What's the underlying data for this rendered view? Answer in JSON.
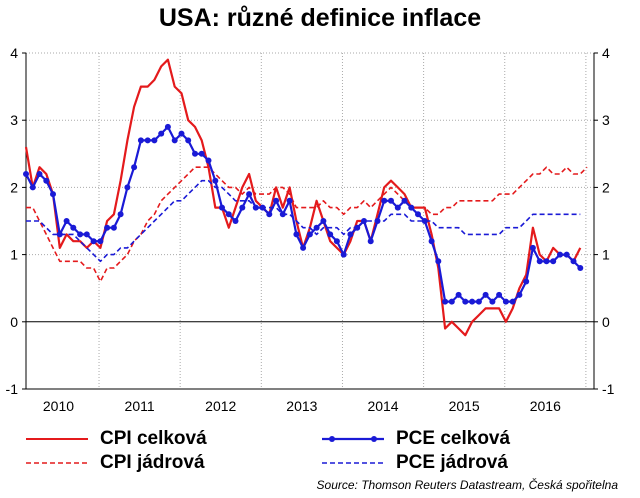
{
  "title": "USA: různé definice inflace",
  "source": "Source: Thomson Reuters Datastream, Česká spořitelna",
  "legend": {
    "cpi_total": "CPI celková",
    "cpi_core": "CPI jádrová",
    "pce_total": "PCE celková",
    "pce_core": "PCE jádrová"
  },
  "colors": {
    "red": "#e41a1c",
    "blue": "#1a1ad6"
  },
  "chart_data": {
    "type": "line",
    "title": "USA: různé definice inflace",
    "xlabel": "",
    "ylabel": "",
    "ylim": [
      -1,
      4
    ],
    "xlim": [
      2009.6,
      2016.6
    ],
    "yticks": [
      -1,
      0,
      1,
      2,
      3,
      4
    ],
    "ytick_labels": [
      "-1",
      "0",
      "1",
      "2",
      "3",
      "4"
    ],
    "xtick_labels": [
      "2010",
      "2011",
      "2012",
      "2013",
      "2014",
      "2015",
      "2016"
    ],
    "xtick_positions": [
      2010.0,
      2011.0,
      2012.0,
      2013.0,
      2014.0,
      2015.0,
      2016.0
    ],
    "grid": true,
    "legend_position": "bottom",
    "series": [
      {
        "name": "CPI celková",
        "color": "#e41a1c",
        "style": "solid",
        "start": 2009.6,
        "step": 0.0833,
        "values": [
          2.6,
          2.0,
          2.3,
          2.2,
          1.9,
          1.1,
          1.3,
          1.2,
          1.2,
          1.1,
          1.2,
          1.1,
          1.5,
          1.6,
          2.1,
          2.7,
          3.2,
          3.5,
          3.5,
          3.6,
          3.8,
          3.9,
          3.5,
          3.4,
          3.0,
          2.9,
          2.7,
          2.3,
          1.7,
          1.7,
          1.4,
          1.7,
          2.0,
          2.2,
          1.8,
          1.7,
          1.6,
          2.0,
          1.7,
          2.0,
          1.5,
          1.1,
          1.4,
          1.8,
          1.5,
          1.2,
          1.1,
          1.0,
          1.2,
          1.5,
          1.5,
          1.2,
          1.6,
          2.0,
          2.1,
          2.0,
          1.9,
          1.7,
          1.7,
          1.7,
          1.3,
          0.8,
          -0.1,
          0.0,
          -0.1,
          -0.2,
          0.0,
          0.1,
          0.2,
          0.2,
          0.2,
          0.0,
          0.2,
          0.5,
          0.7,
          1.4,
          1.0,
          0.9,
          1.1,
          1.0,
          1.0,
          0.9,
          1.1
        ]
      },
      {
        "name": "CPI jádrová",
        "color": "#e41a1c",
        "style": "dashed",
        "start": 2009.6,
        "step": 0.0833,
        "values": [
          1.7,
          1.7,
          1.5,
          1.3,
          1.1,
          0.9,
          0.9,
          0.9,
          0.9,
          0.8,
          0.8,
          0.6,
          0.8,
          0.8,
          0.9,
          1.0,
          1.2,
          1.3,
          1.5,
          1.6,
          1.8,
          1.9,
          2.0,
          2.1,
          2.2,
          2.3,
          2.3,
          2.3,
          2.2,
          2.1,
          2.0,
          2.0,
          1.9,
          2.0,
          1.9,
          1.9,
          1.9,
          2.0,
          2.0,
          1.9,
          1.7,
          1.7,
          1.7,
          1.7,
          1.8,
          1.7,
          1.7,
          1.6,
          1.7,
          1.7,
          1.8,
          1.7,
          1.8,
          1.9,
          2.0,
          1.9,
          1.8,
          1.7,
          1.7,
          1.7,
          1.6,
          1.6,
          1.7,
          1.7,
          1.8,
          1.8,
          1.8,
          1.8,
          1.8,
          1.8,
          1.9,
          1.9,
          1.9,
          2.0,
          2.1,
          2.2,
          2.2,
          2.3,
          2.2,
          2.2,
          2.3,
          2.2,
          2.2,
          2.3
        ]
      },
      {
        "name": "PCE celková",
        "color": "#1a1ad6",
        "style": "solid-markers",
        "start": 2009.6,
        "step": 0.0833,
        "values": [
          2.2,
          2.0,
          2.2,
          2.1,
          1.9,
          1.3,
          1.5,
          1.4,
          1.3,
          1.3,
          1.2,
          1.2,
          1.4,
          1.4,
          1.6,
          2.0,
          2.3,
          2.7,
          2.7,
          2.7,
          2.8,
          2.9,
          2.7,
          2.8,
          2.7,
          2.5,
          2.5,
          2.4,
          2.1,
          1.7,
          1.6,
          1.5,
          1.7,
          1.9,
          1.7,
          1.7,
          1.6,
          1.8,
          1.6,
          1.8,
          1.3,
          1.1,
          1.3,
          1.4,
          1.5,
          1.3,
          1.2,
          1.0,
          1.3,
          1.4,
          1.5,
          1.2,
          1.5,
          1.8,
          1.8,
          1.7,
          1.8,
          1.7,
          1.6,
          1.5,
          1.2,
          0.9,
          0.3,
          0.3,
          0.4,
          0.3,
          0.3,
          0.3,
          0.4,
          0.3,
          0.4,
          0.3,
          0.3,
          0.4,
          0.6,
          1.1,
          0.9,
          0.9,
          0.9,
          1.0,
          1.0,
          0.9,
          0.8
        ]
      },
      {
        "name": "PCE jádrová",
        "color": "#1a1ad6",
        "style": "dashed",
        "start": 2009.6,
        "step": 0.0833,
        "values": [
          1.5,
          1.5,
          1.5,
          1.4,
          1.3,
          1.3,
          1.3,
          1.3,
          1.2,
          1.1,
          1.0,
          0.9,
          1.0,
          1.0,
          1.1,
          1.1,
          1.2,
          1.3,
          1.4,
          1.5,
          1.6,
          1.7,
          1.8,
          1.8,
          1.9,
          2.0,
          2.1,
          2.1,
          2.0,
          2.0,
          1.9,
          1.8,
          1.8,
          1.8,
          1.7,
          1.7,
          1.7,
          1.7,
          1.6,
          1.6,
          1.5,
          1.4,
          1.4,
          1.3,
          1.4,
          1.4,
          1.4,
          1.3,
          1.4,
          1.4,
          1.5,
          1.5,
          1.5,
          1.5,
          1.6,
          1.6,
          1.6,
          1.5,
          1.5,
          1.5,
          1.5,
          1.4,
          1.4,
          1.4,
          1.4,
          1.3,
          1.3,
          1.3,
          1.3,
          1.3,
          1.3,
          1.4,
          1.4,
          1.4,
          1.5,
          1.6,
          1.6,
          1.6,
          1.6,
          1.6,
          1.6,
          1.6,
          1.6
        ]
      }
    ]
  }
}
